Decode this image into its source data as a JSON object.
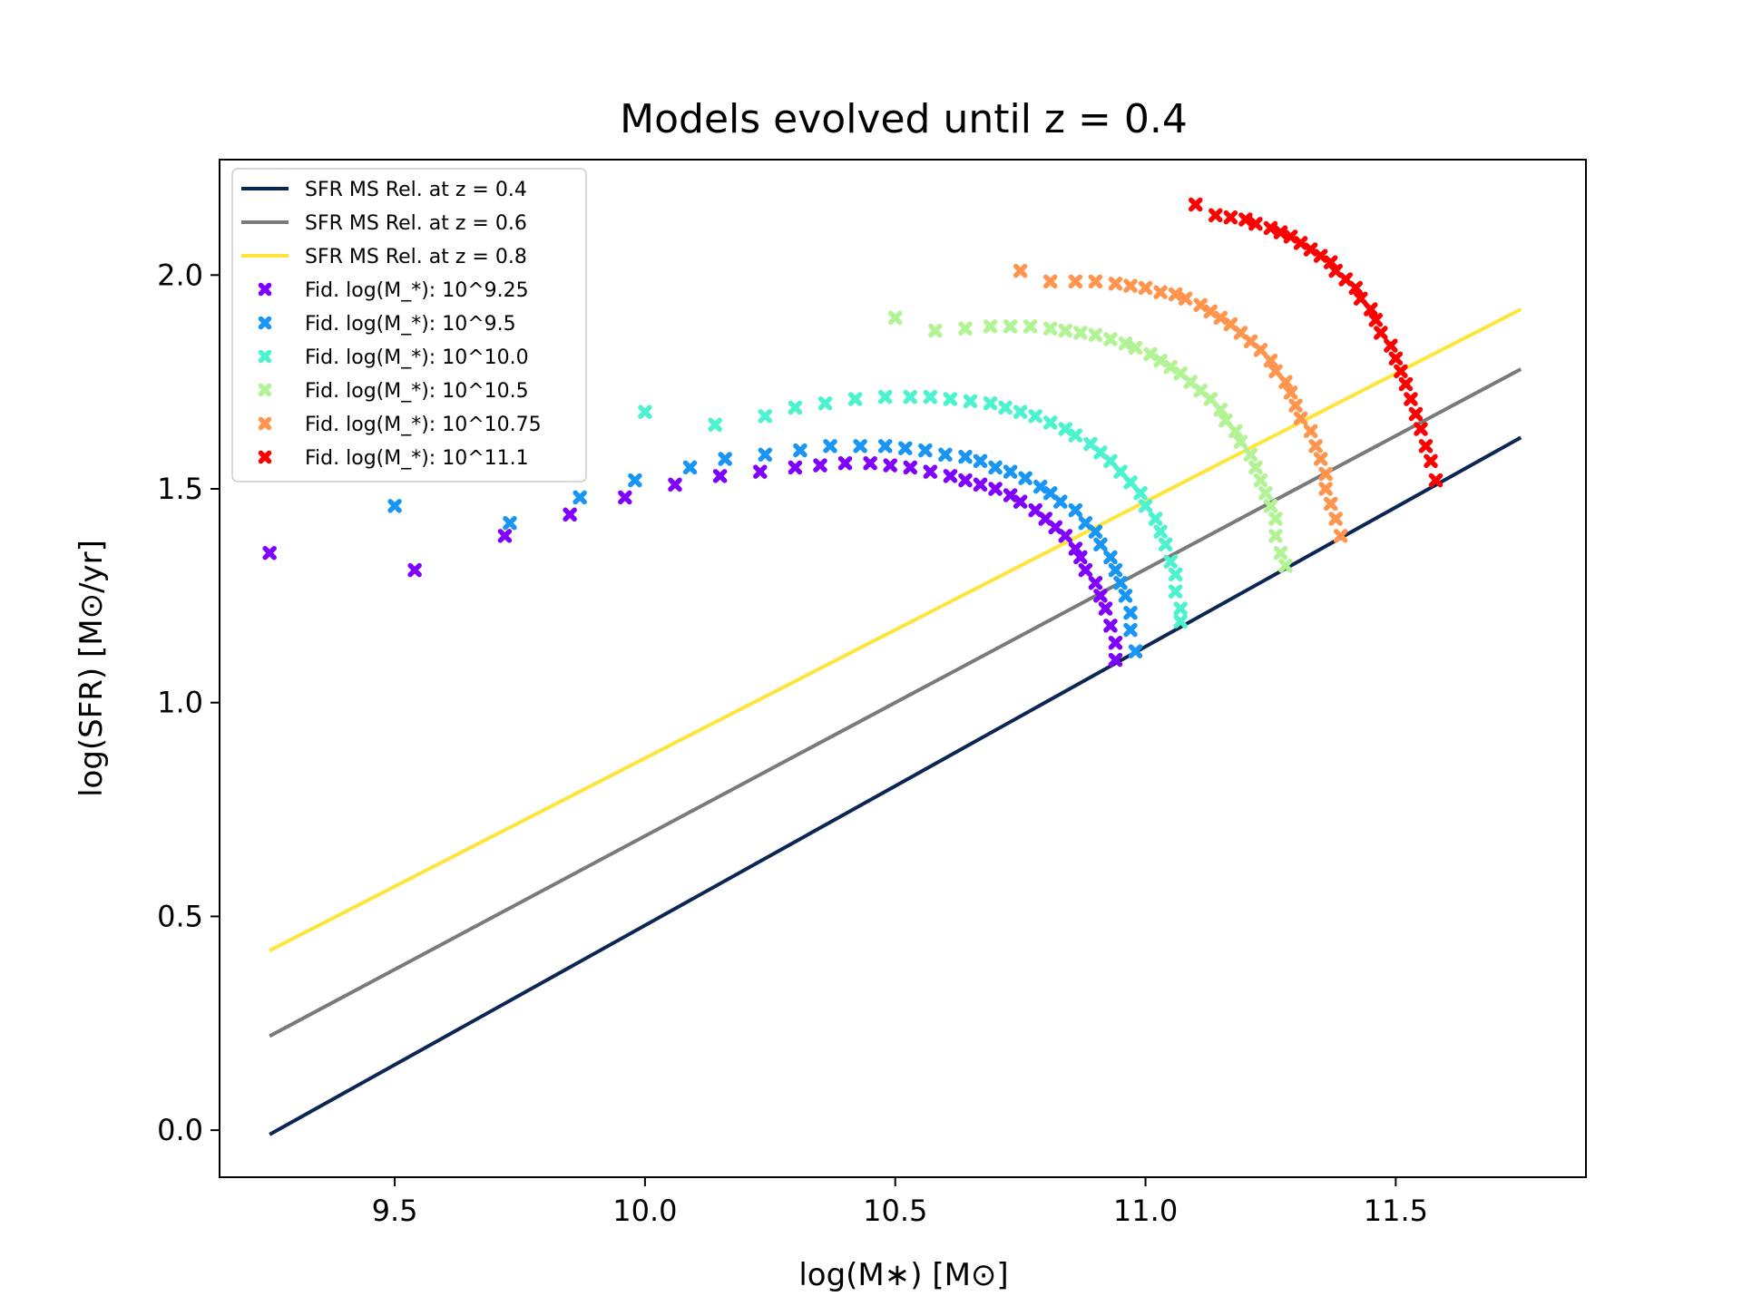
{
  "chart_data": {
    "type": "scatter",
    "title": "Models evolved until z = 0.4",
    "xlabel": "log(M∗) [M⊙]",
    "ylabel": "log(SFR) [M⊙/yr]",
    "xlim": [
      9.15,
      11.88
    ],
    "ylim": [
      -0.11,
      2.27
    ],
    "x_ticks": [
      9.5,
      10.0,
      10.5,
      11.0,
      11.5
    ],
    "x_tick_labels": [
      "9.5",
      "10.0",
      "10.5",
      "11.0",
      "11.5"
    ],
    "y_ticks": [
      0.0,
      0.5,
      1.0,
      1.5,
      2.0
    ],
    "y_tick_labels": [
      "0.0",
      "0.5",
      "1.0",
      "1.5",
      "2.0"
    ],
    "grid": false,
    "legend_position": "top-left",
    "lines": [
      {
        "name": "SFR MS Rel. at z = 0.4",
        "color": "#0b2654",
        "x": [
          9.25,
          11.75
        ],
        "y": [
          -0.01,
          1.62
        ]
      },
      {
        "name": "SFR MS Rel. at z = 0.6",
        "color": "#7a7a7a",
        "x": [
          9.25,
          11.75
        ],
        "y": [
          0.22,
          1.78
        ]
      },
      {
        "name": "SFR MS Rel. at z = 0.8",
        "color": "#fde53a",
        "x": [
          9.25,
          11.75
        ],
        "y": [
          0.42,
          1.92
        ]
      }
    ],
    "series": [
      {
        "name": "Fid. log(M_*): 10^9.25",
        "color": "#7f00ff",
        "points": [
          [
            9.25,
            1.35
          ],
          [
            9.54,
            1.31
          ],
          [
            9.72,
            1.39
          ],
          [
            9.85,
            1.44
          ],
          [
            9.96,
            1.48
          ],
          [
            10.06,
            1.51
          ],
          [
            10.15,
            1.53
          ],
          [
            10.23,
            1.54
          ],
          [
            10.3,
            1.55
          ],
          [
            10.35,
            1.555
          ],
          [
            10.4,
            1.56
          ],
          [
            10.45,
            1.56
          ],
          [
            10.49,
            1.555
          ],
          [
            10.53,
            1.55
          ],
          [
            10.57,
            1.54
          ],
          [
            10.61,
            1.53
          ],
          [
            10.64,
            1.52
          ],
          [
            10.67,
            1.51
          ],
          [
            10.7,
            1.5
          ],
          [
            10.73,
            1.485
          ],
          [
            10.75,
            1.47
          ],
          [
            10.78,
            1.45
          ],
          [
            10.8,
            1.43
          ],
          [
            10.82,
            1.41
          ],
          [
            10.84,
            1.39
          ],
          [
            10.86,
            1.36
          ],
          [
            10.87,
            1.34
          ],
          [
            10.88,
            1.31
          ],
          [
            10.9,
            1.28
          ],
          [
            10.91,
            1.25
          ],
          [
            10.92,
            1.22
          ],
          [
            10.93,
            1.18
          ],
          [
            10.94,
            1.14
          ],
          [
            10.94,
            1.1
          ]
        ]
      },
      {
        "name": "Fid. log(M_*): 10^9.5",
        "color": "#1996f3",
        "points": [
          [
            9.5,
            1.46
          ],
          [
            9.73,
            1.42
          ],
          [
            9.87,
            1.48
          ],
          [
            9.98,
            1.52
          ],
          [
            10.09,
            1.55
          ],
          [
            10.16,
            1.57
          ],
          [
            10.24,
            1.58
          ],
          [
            10.31,
            1.59
          ],
          [
            10.37,
            1.6
          ],
          [
            10.43,
            1.6
          ],
          [
            10.48,
            1.6
          ],
          [
            10.52,
            1.595
          ],
          [
            10.56,
            1.59
          ],
          [
            10.6,
            1.58
          ],
          [
            10.64,
            1.575
          ],
          [
            10.67,
            1.565
          ],
          [
            10.7,
            1.55
          ],
          [
            10.73,
            1.54
          ],
          [
            10.76,
            1.525
          ],
          [
            10.79,
            1.505
          ],
          [
            10.81,
            1.49
          ],
          [
            10.83,
            1.47
          ],
          [
            10.86,
            1.45
          ],
          [
            10.88,
            1.42
          ],
          [
            10.9,
            1.4
          ],
          [
            10.91,
            1.37
          ],
          [
            10.93,
            1.34
          ],
          [
            10.94,
            1.31
          ],
          [
            10.95,
            1.28
          ],
          [
            10.96,
            1.25
          ],
          [
            10.97,
            1.21
          ],
          [
            10.97,
            1.17
          ],
          [
            10.98,
            1.12
          ]
        ]
      },
      {
        "name": "Fid. log(M_*): 10^10.0",
        "color": "#4df3ce",
        "points": [
          [
            10.0,
            1.68
          ],
          [
            10.14,
            1.65
          ],
          [
            10.24,
            1.67
          ],
          [
            10.3,
            1.69
          ],
          [
            10.36,
            1.7
          ],
          [
            10.42,
            1.71
          ],
          [
            10.48,
            1.715
          ],
          [
            10.53,
            1.715
          ],
          [
            10.57,
            1.715
          ],
          [
            10.61,
            1.71
          ],
          [
            10.65,
            1.705
          ],
          [
            10.69,
            1.7
          ],
          [
            10.72,
            1.69
          ],
          [
            10.75,
            1.68
          ],
          [
            10.78,
            1.67
          ],
          [
            10.81,
            1.655
          ],
          [
            10.84,
            1.64
          ],
          [
            10.86,
            1.625
          ],
          [
            10.89,
            1.605
          ],
          [
            10.91,
            1.585
          ],
          [
            10.93,
            1.565
          ],
          [
            10.95,
            1.54
          ],
          [
            10.97,
            1.515
          ],
          [
            10.99,
            1.49
          ],
          [
            11.0,
            1.46
          ],
          [
            11.02,
            1.43
          ],
          [
            11.03,
            1.4
          ],
          [
            11.04,
            1.37
          ],
          [
            11.05,
            1.33
          ],
          [
            11.06,
            1.3
          ],
          [
            11.06,
            1.26
          ],
          [
            11.07,
            1.22
          ],
          [
            11.07,
            1.19
          ]
        ]
      },
      {
        "name": "Fid. log(M_*): 10^10.5",
        "color": "#b2f396",
        "points": [
          [
            10.5,
            1.9
          ],
          [
            10.58,
            1.87
          ],
          [
            10.64,
            1.875
          ],
          [
            10.69,
            1.88
          ],
          [
            10.73,
            1.88
          ],
          [
            10.77,
            1.88
          ],
          [
            10.81,
            1.875
          ],
          [
            10.84,
            1.87
          ],
          [
            10.87,
            1.865
          ],
          [
            10.9,
            1.86
          ],
          [
            10.93,
            1.85
          ],
          [
            10.96,
            1.84
          ],
          [
            10.98,
            1.83
          ],
          [
            11.01,
            1.815
          ],
          [
            11.03,
            1.8
          ],
          [
            11.05,
            1.785
          ],
          [
            11.07,
            1.77
          ],
          [
            11.09,
            1.75
          ],
          [
            11.11,
            1.73
          ],
          [
            11.13,
            1.71
          ],
          [
            11.15,
            1.685
          ],
          [
            11.16,
            1.66
          ],
          [
            11.18,
            1.635
          ],
          [
            11.19,
            1.61
          ],
          [
            11.21,
            1.58
          ],
          [
            11.22,
            1.55
          ],
          [
            11.23,
            1.52
          ],
          [
            11.24,
            1.49
          ],
          [
            11.25,
            1.46
          ],
          [
            11.26,
            1.43
          ],
          [
            11.26,
            1.39
          ],
          [
            11.27,
            1.35
          ],
          [
            11.28,
            1.32
          ]
        ]
      },
      {
        "name": "Fid. log(M_*): 10^10.75",
        "color": "#ff954e",
        "points": [
          [
            10.75,
            2.01
          ],
          [
            10.81,
            1.985
          ],
          [
            10.86,
            1.985
          ],
          [
            10.9,
            1.985
          ],
          [
            10.94,
            1.98
          ],
          [
            10.97,
            1.975
          ],
          [
            11.0,
            1.97
          ],
          [
            11.03,
            1.96
          ],
          [
            11.06,
            1.955
          ],
          [
            11.08,
            1.945
          ],
          [
            11.11,
            1.93
          ],
          [
            11.13,
            1.915
          ],
          [
            11.15,
            1.9
          ],
          [
            11.17,
            1.885
          ],
          [
            11.19,
            1.865
          ],
          [
            11.21,
            1.845
          ],
          [
            11.23,
            1.825
          ],
          [
            11.25,
            1.8
          ],
          [
            11.26,
            1.775
          ],
          [
            11.28,
            1.75
          ],
          [
            11.29,
            1.725
          ],
          [
            11.3,
            1.695
          ],
          [
            11.31,
            1.665
          ],
          [
            11.33,
            1.635
          ],
          [
            11.34,
            1.6
          ],
          [
            11.35,
            1.57
          ],
          [
            11.36,
            1.535
          ],
          [
            11.36,
            1.5
          ],
          [
            11.37,
            1.465
          ],
          [
            11.38,
            1.43
          ],
          [
            11.39,
            1.39
          ]
        ]
      },
      {
        "name": "Fid. log(M_*): 10^11.1",
        "color": "#ff0000",
        "points": [
          [
            11.1,
            2.165
          ],
          [
            11.14,
            2.14
          ],
          [
            11.17,
            2.135
          ],
          [
            11.2,
            2.13
          ],
          [
            11.22,
            2.12
          ],
          [
            11.25,
            2.11
          ],
          [
            11.27,
            2.1
          ],
          [
            11.29,
            2.09
          ],
          [
            11.31,
            2.075
          ],
          [
            11.33,
            2.06
          ],
          [
            11.35,
            2.045
          ],
          [
            11.37,
            2.03
          ],
          [
            11.38,
            2.01
          ],
          [
            11.4,
            1.99
          ],
          [
            11.42,
            1.97
          ],
          [
            11.43,
            1.945
          ],
          [
            11.45,
            1.92
          ],
          [
            11.46,
            1.895
          ],
          [
            11.47,
            1.865
          ],
          [
            11.49,
            1.835
          ],
          [
            11.5,
            1.805
          ],
          [
            11.51,
            1.775
          ],
          [
            11.52,
            1.745
          ],
          [
            11.53,
            1.71
          ],
          [
            11.54,
            1.675
          ],
          [
            11.55,
            1.64
          ],
          [
            11.56,
            1.6
          ],
          [
            11.57,
            1.565
          ],
          [
            11.58,
            1.52
          ]
        ]
      }
    ]
  }
}
